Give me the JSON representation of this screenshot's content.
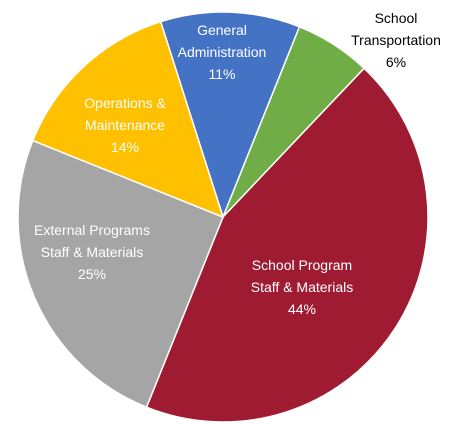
{
  "chart_data": {
    "type": "pie",
    "categories": [
      "General Administration",
      "School Transportation",
      "School Program Staff & Materials",
      "External Programs Staff & Materials",
      "Operations & Maintenance"
    ],
    "values": [
      11,
      6,
      44,
      25,
      14
    ],
    "value_labels": [
      "11%",
      "6%",
      "44%",
      "25%",
      "14%"
    ],
    "colors": [
      "#4472c4",
      "#70ad47",
      "#9e1b32",
      "#a5a5a5",
      "#ffc000"
    ]
  }
}
